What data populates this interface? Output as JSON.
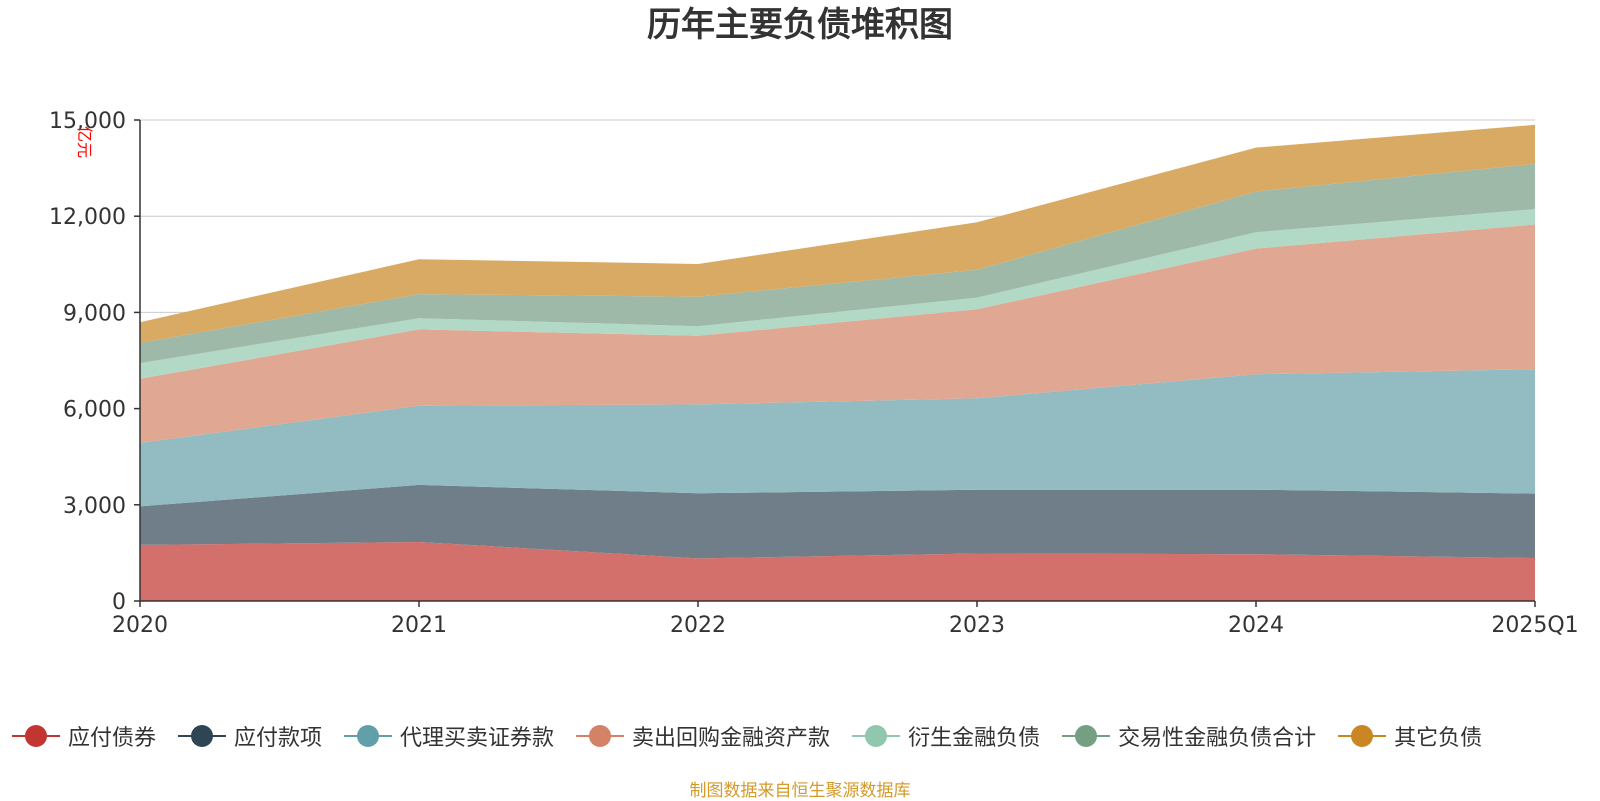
{
  "chart_data": {
    "type": "area",
    "title": "历年主要负债堆积图",
    "ylabel": "亿元",
    "xlabel": "",
    "categories": [
      "2020",
      "2021",
      "2022",
      "2023",
      "2024",
      "2025Q1"
    ],
    "ylim": [
      0,
      15000
    ],
    "yticks": [
      0,
      3000,
      6000,
      9000,
      12000,
      15000
    ],
    "ytick_labels": [
      "0",
      "3,000",
      "6,000",
      "9,000",
      "12,000",
      "15,000"
    ],
    "stacked": true,
    "grid": true,
    "legend_position": "bottom",
    "series": [
      {
        "name": "应付债券",
        "color": "#c23531",
        "fill": "#d4706c",
        "values": [
          1750,
          1840,
          1330,
          1480,
          1460,
          1340
        ]
      },
      {
        "name": "应付款项",
        "color": "#2f4554",
        "fill": "#6f7e88",
        "values": [
          1200,
          1780,
          2030,
          1990,
          2010,
          2010
        ]
      },
      {
        "name": "代理买卖证券款",
        "color": "#61a0a8",
        "fill": "#92bcc2",
        "values": [
          1980,
          2470,
          2770,
          2850,
          3600,
          3880
        ]
      },
      {
        "name": "卖出回购金融资产款",
        "color": "#d48265",
        "fill": "#e0a793",
        "values": [
          2000,
          2380,
          2140,
          2780,
          3920,
          4510
        ]
      },
      {
        "name": "衍生金融负债",
        "color": "#91c7ae",
        "fill": "#b2d8c6",
        "values": [
          490,
          350,
          300,
          360,
          510,
          480
        ]
      },
      {
        "name": "交易性金融负债合计",
        "color": "#749f83",
        "fill": "#9eb9a7",
        "values": [
          630,
          750,
          920,
          870,
          1270,
          1410
        ]
      },
      {
        "name": "其它负债",
        "color": "#ca8622",
        "fill": "#d9aa64",
        "values": [
          640,
          1090,
          1020,
          1480,
          1370,
          1220
        ]
      }
    ]
  },
  "source_note": "制图数据来自恒生聚源数据库"
}
